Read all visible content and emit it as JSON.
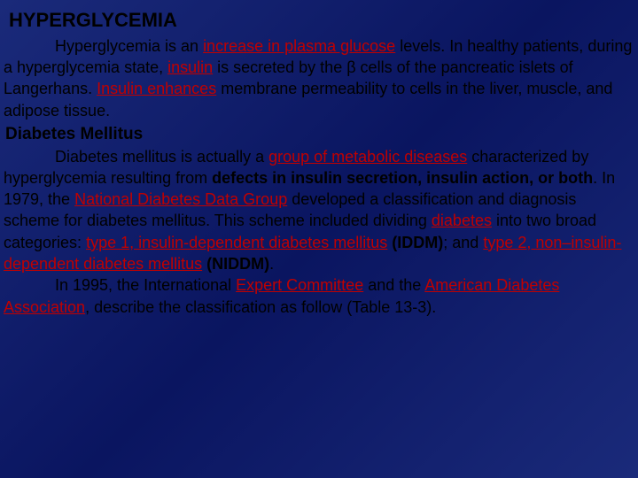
{
  "colors": {
    "background_start": "#1a2a7a",
    "background_mid": "#0a1560",
    "link_red": "#c00000",
    "text": "#000000"
  },
  "typography": {
    "base_fontsize": 18,
    "title_fontsize": 22,
    "font_family": "Verdana"
  },
  "title": "HYPERGLYCEMIA",
  "p1_a": "Hyperglycemia is an ",
  "p1_link1": "increase in plasma glucose",
  "p1_b": " levels. In healthy patients, during a hyperglycemia state, ",
  "p1_link2": "insulin",
  "p1_c": " is secreted by the β cells of the pancreatic islets of Langerhans. ",
  "p1_link3": "Insulin enhances",
  "p1_d": " membrane permeability to cells in the liver, muscle, and adipose tissue.",
  "subtitle": "Diabetes Mellitus",
  "p2_a": "Diabetes mellitus is actually a ",
  "p2_link1": "group of metabolic diseases",
  "p2_b": " characterized by hyperglycemia resulting from ",
  "p2_bold1": "defects in insulin secretion, insulin action, or both",
  "p2_c": ". In 1979, the ",
  "p2_link2": "National Diabetes Data Group",
  "p2_d": " developed a classification and diagnosis scheme for diabetes mellitus. This scheme included dividing ",
  "p2_link3": "diabetes",
  "p2_e": " into two broad categories: ",
  "p2_link4": "type 1, insulin-dependent diabetes mellitus",
  "p2_bold2": " (IDDM)",
  "p2_f": "; and ",
  "p2_link5": "type 2, non–insulin-dependent diabetes mellitus",
  "p2_bold3": " (NIDDM)",
  "p2_g": ".",
  "p3_a": "In 1995, the International ",
  "p3_link1": "Expert Committee",
  "p3_b": " and the ",
  "p3_link2": "American Diabetes Association",
  "p3_c": ", describe the classification as follow (Table 13-3)."
}
